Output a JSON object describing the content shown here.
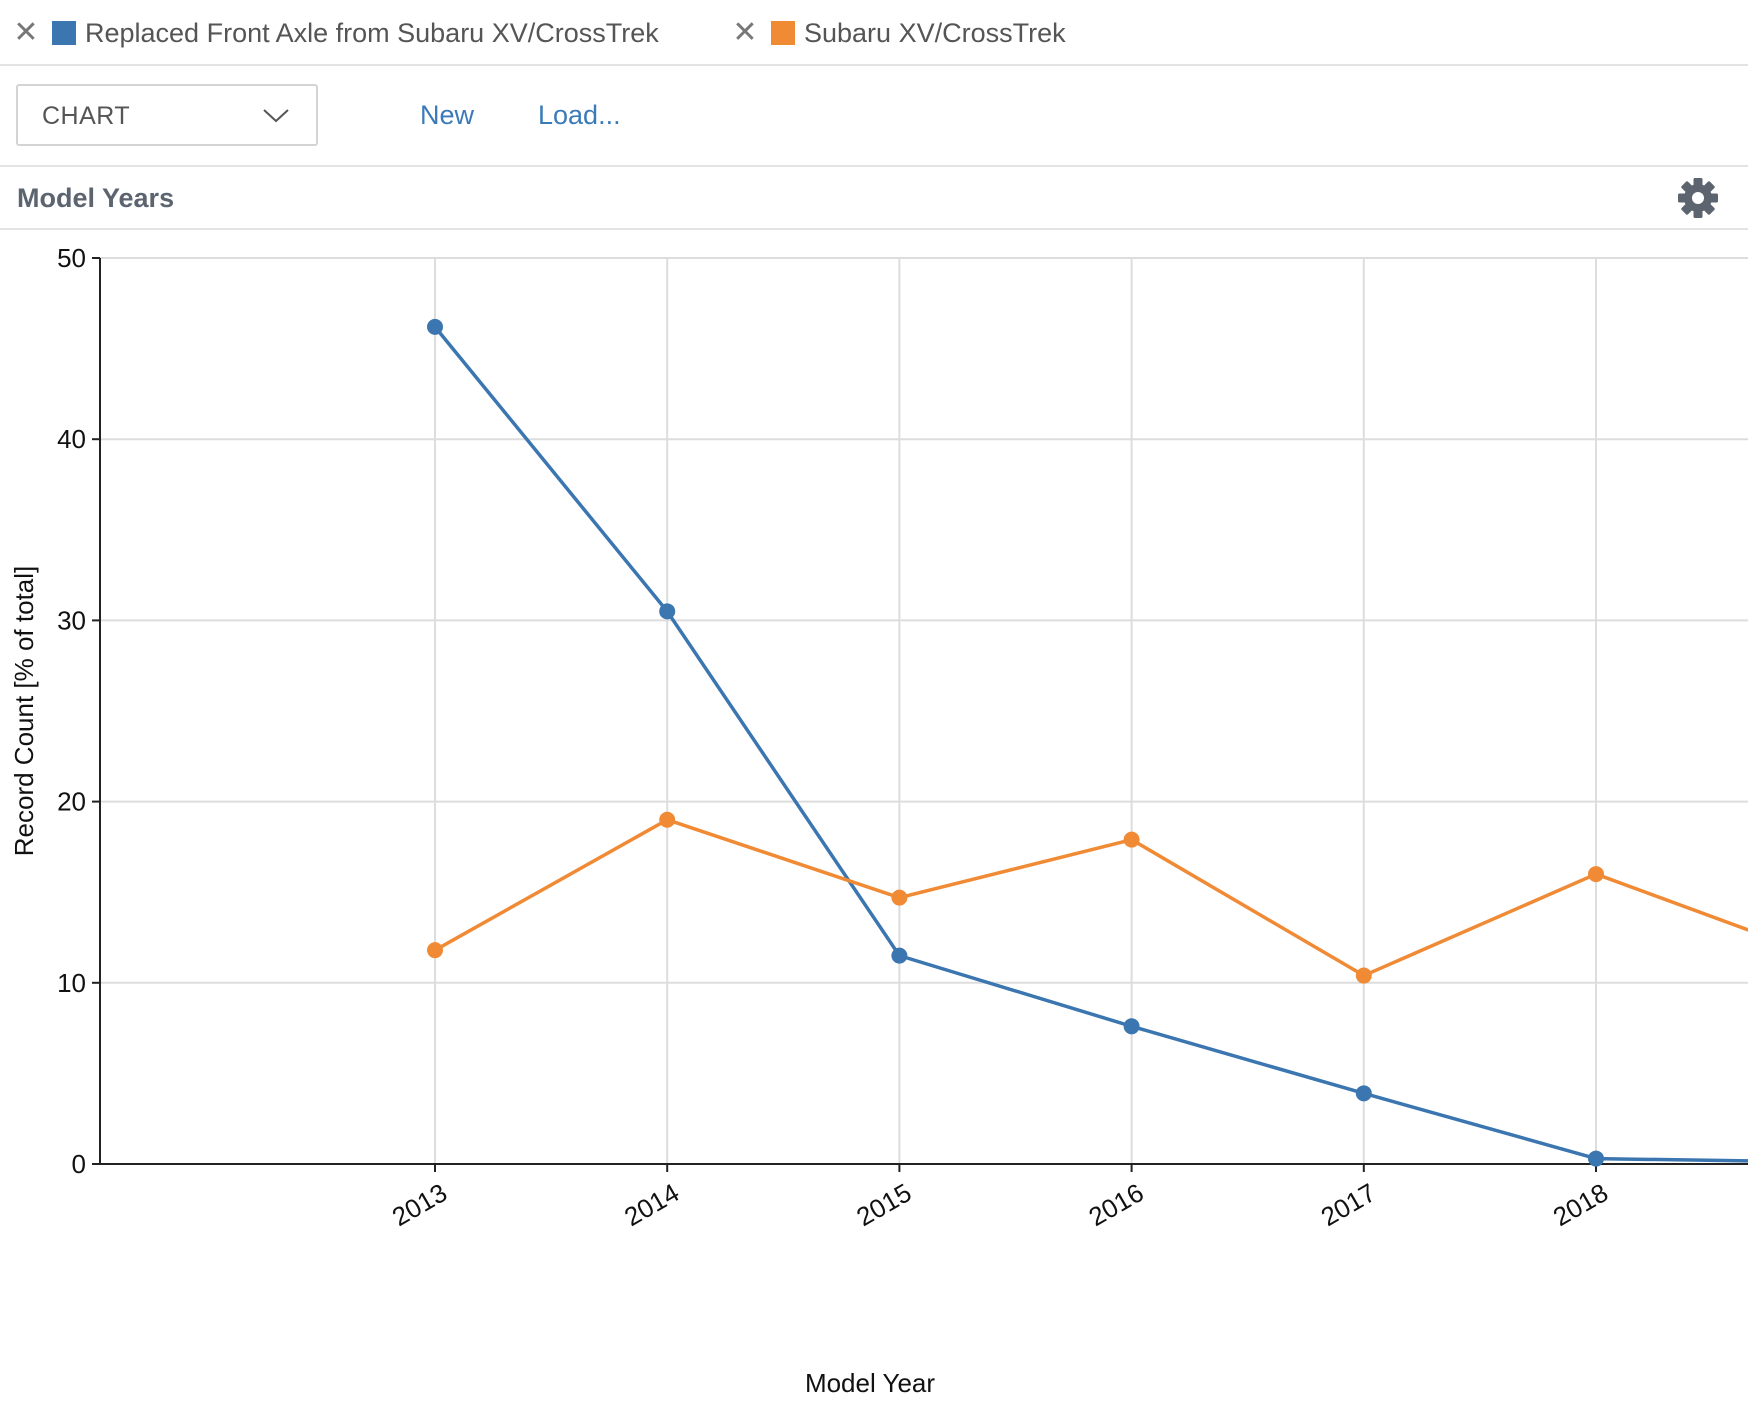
{
  "legend": [
    {
      "remove_glyph": "✕",
      "label": "Replaced Front Axle from Subaru XV/CrossTrek",
      "color": "#3b76b0"
    },
    {
      "remove_glyph": "✕",
      "label": "Subaru XV/CrossTrek",
      "color": "#f08a35"
    }
  ],
  "toolbar": {
    "view_select": "CHART",
    "new_label": "New",
    "load_label": "Load..."
  },
  "section": {
    "title": "Model Years",
    "settings_icon": "gear-icon"
  },
  "chart_data": {
    "type": "line",
    "xlabel": "Model Year",
    "ylabel": "Record Count [% of total]",
    "ylim": [
      0,
      50
    ],
    "yticks": [
      0,
      10,
      20,
      30,
      40,
      50
    ],
    "categories": [
      "2013",
      "2014",
      "2015",
      "2016",
      "2017",
      "2018"
    ],
    "grid": true,
    "series": [
      {
        "name": "Replaced Front Axle from Subaru XV/CrossTrek",
        "color": "#3b76b0",
        "values": [
          46.2,
          30.5,
          11.5,
          7.6,
          3.9,
          0.3
        ],
        "continues_to": 0.1
      },
      {
        "name": "Subaru XV/CrossTrek",
        "color": "#f08a35",
        "values": [
          11.8,
          19.0,
          14.7,
          17.9,
          10.4,
          16.0
        ],
        "continues_to": 11.3
      }
    ]
  }
}
